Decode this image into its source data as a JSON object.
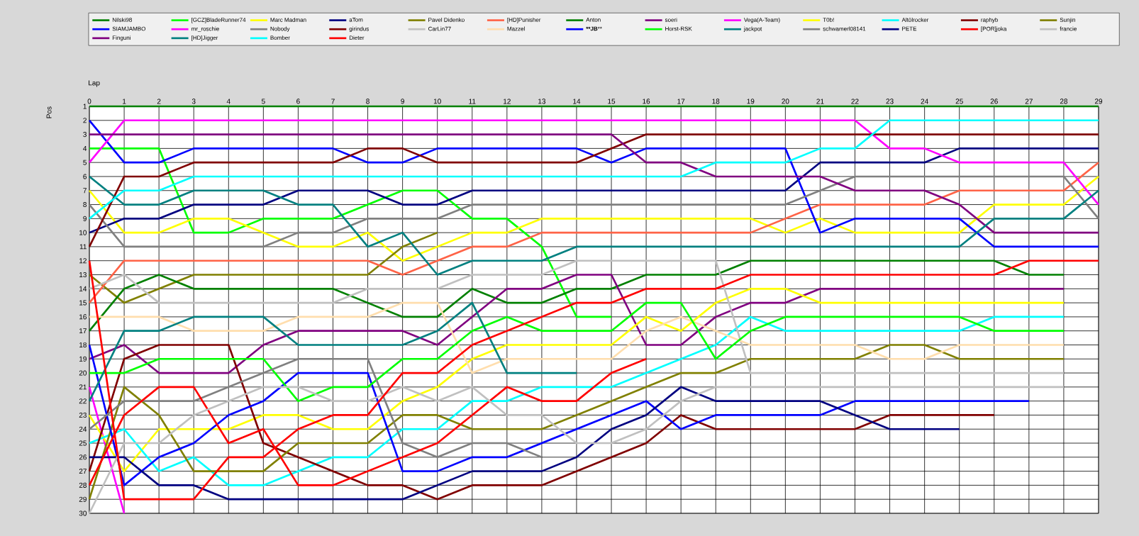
{
  "chart_data": {
    "type": "line",
    "xlabel": "Lap",
    "ylabel": "Pos",
    "x": [
      0,
      1,
      2,
      3,
      4,
      5,
      6,
      7,
      8,
      9,
      10,
      11,
      12,
      13,
      14,
      15,
      16,
      17,
      18,
      19,
      20,
      21,
      22,
      23,
      24,
      25,
      26,
      27,
      28,
      29
    ],
    "xlim": [
      0,
      29
    ],
    "xticks": [
      0,
      1,
      2,
      3,
      4,
      5,
      6,
      7,
      8,
      9,
      10,
      11,
      12,
      13,
      14,
      15,
      16,
      17,
      18,
      19,
      20,
      21,
      22,
      23,
      24,
      25,
      26,
      27,
      28,
      29
    ],
    "ylim": [
      30,
      1
    ],
    "yticks": [
      1,
      2,
      3,
      4,
      5,
      6,
      7,
      8,
      9,
      10,
      11,
      12,
      13,
      14,
      15,
      16,
      17,
      18,
      19,
      20,
      21,
      22,
      23,
      24,
      25,
      26,
      27,
      28,
      29,
      30
    ],
    "grid": true,
    "legend": "top",
    "series": [
      {
        "name": "Nilski98",
        "color": "#008000",
        "values": [
          1,
          1,
          1,
          1,
          1,
          1,
          1,
          1,
          1,
          1,
          1,
          1,
          1,
          1,
          1,
          1,
          1,
          1,
          1,
          1,
          1,
          1,
          1,
          1,
          1,
          1,
          1,
          1,
          1,
          1
        ]
      },
      {
        "name": "SIAMJAMBO",
        "color": "#0000ff",
        "values": [
          2,
          5,
          5,
          4,
          4,
          4,
          4,
          4,
          5,
          5,
          4,
          4,
          4,
          4,
          4,
          5,
          4,
          4,
          4,
          4,
          4,
          10,
          9,
          9,
          9,
          9,
          11,
          11,
          11,
          11
        ]
      },
      {
        "name": "Finguni",
        "color": "#800080",
        "values": [
          3,
          3,
          3,
          3,
          3,
          3,
          3,
          3,
          3,
          3,
          3,
          3,
          3,
          3,
          3,
          3,
          5,
          5,
          6,
          6,
          6,
          6,
          7,
          7,
          7,
          8,
          10,
          10,
          10,
          10
        ]
      },
      {
        "name": "[GCZ]BladeRunner74",
        "color": "#00ff00",
        "values": [
          4,
          4,
          4,
          10,
          10,
          9,
          9,
          9,
          8,
          7,
          7,
          9,
          9,
          11,
          16,
          16,
          null,
          null,
          null,
          null,
          null,
          null,
          null,
          null,
          null,
          null,
          null,
          null,
          null,
          null
        ]
      },
      {
        "name": "mr_roschie",
        "color": "#ff00ff",
        "values": [
          5,
          2,
          2,
          2,
          2,
          2,
          2,
          2,
          2,
          2,
          2,
          2,
          2,
          2,
          2,
          2,
          2,
          2,
          2,
          2,
          2,
          2,
          2,
          4,
          4,
          5,
          5,
          5,
          5,
          8
        ]
      },
      {
        "name": "[HD]Jigger",
        "color": "#008080",
        "values": [
          6,
          8,
          8,
          7,
          7,
          7,
          8,
          8,
          11,
          10,
          13,
          12,
          12,
          12,
          11,
          11,
          11,
          11,
          11,
          11,
          11,
          11,
          11,
          11,
          11,
          11,
          9,
          9,
          9,
          7
        ]
      },
      {
        "name": "Marc Madman",
        "color": "#ffff00",
        "values": [
          7,
          10,
          10,
          9,
          9,
          10,
          11,
          11,
          10,
          12,
          11,
          10,
          10,
          9,
          9,
          9,
          9,
          9,
          9,
          9,
          10,
          9,
          10,
          10,
          10,
          10,
          8,
          8,
          8,
          6
        ]
      },
      {
        "name": "Nobody",
        "color": "#808080",
        "values": [
          8,
          11,
          11,
          11,
          11,
          11,
          10,
          10,
          9,
          9,
          9,
          8,
          8,
          8,
          8,
          8,
          8,
          8,
          8,
          8,
          8,
          7,
          6,
          6,
          6,
          6,
          6,
          6,
          6,
          9
        ]
      },
      {
        "name": "Bomber",
        "color": "#00ffff",
        "values": [
          9,
          7,
          7,
          6,
          6,
          6,
          6,
          6,
          6,
          6,
          6,
          6,
          6,
          6,
          6,
          6,
          6,
          6,
          5,
          5,
          5,
          4,
          4,
          2,
          2,
          2,
          2,
          2,
          2,
          2
        ]
      },
      {
        "name": "aTom",
        "color": "#000080",
        "values": [
          10,
          9,
          9,
          8,
          8,
          8,
          7,
          7,
          7,
          8,
          8,
          7,
          7,
          7,
          7,
          7,
          7,
          7,
          7,
          7,
          7,
          5,
          5,
          5,
          5,
          4,
          4,
          4,
          4,
          4
        ]
      },
      {
        "name": "girindus",
        "color": "#800000",
        "values": [
          11,
          6,
          6,
          5,
          5,
          5,
          5,
          5,
          4,
          4,
          5,
          5,
          5,
          5,
          5,
          4,
          3,
          3,
          3,
          3,
          3,
          3,
          3,
          3,
          3,
          3,
          3,
          3,
          3,
          3
        ]
      },
      {
        "name": "Dieter",
        "color": "#ff0000",
        "values": [
          12,
          29,
          29,
          29,
          26,
          26,
          24,
          23,
          23,
          20,
          20,
          18,
          17,
          16,
          15,
          15,
          14,
          14,
          14,
          13,
          13,
          13,
          13,
          13,
          13,
          13,
          13,
          12,
          12,
          12
        ]
      },
      {
        "name": "Pavel Didenko",
        "color": "#808000",
        "values": [
          13,
          15,
          14,
          13,
          13,
          13,
          13,
          13,
          13,
          11,
          10,
          null,
          null,
          null,
          null,
          null,
          null,
          null,
          null,
          null,
          null,
          null,
          null,
          null,
          null,
          null,
          null,
          null,
          null,
          null
        ]
      },
      {
        "name": "CarLin77",
        "color": "#c0c0c0",
        "values": [
          14,
          13,
          15,
          15,
          15,
          15,
          15,
          15,
          14,
          14,
          14,
          13,
          13,
          13,
          12,
          12,
          12,
          12,
          12,
          20,
          20,
          20,
          20,
          20,
          20,
          20,
          20,
          20,
          20,
          null
        ]
      },
      {
        "name": "[HD]Punisher",
        "color": "#ff6347",
        "values": [
          15,
          12,
          12,
          12,
          12,
          12,
          12,
          12,
          12,
          13,
          12,
          11,
          11,
          10,
          10,
          10,
          10,
          10,
          10,
          10,
          9,
          8,
          8,
          8,
          8,
          7,
          7,
          7,
          7,
          5
        ]
      },
      {
        "name": "Mazzel",
        "color": "#ffdead",
        "values": [
          16,
          16,
          16,
          17,
          17,
          17,
          16,
          16,
          16,
          15,
          15,
          20,
          19,
          19,
          19,
          19,
          17,
          16,
          17,
          18,
          18,
          18,
          18,
          19,
          19,
          18,
          18,
          18,
          18,
          null
        ]
      },
      {
        "name": "Anton",
        "color": "#008000",
        "values": [
          17,
          14,
          13,
          14,
          14,
          14,
          14,
          14,
          15,
          16,
          16,
          14,
          15,
          15,
          14,
          14,
          13,
          13,
          13,
          12,
          12,
          12,
          12,
          12,
          12,
          12,
          12,
          13,
          13,
          null
        ]
      },
      {
        "name": "****JB****",
        "color": "#0000ff",
        "values": [
          18,
          28,
          26,
          25,
          23,
          22,
          20,
          20,
          20,
          27,
          27,
          26,
          26,
          25,
          24,
          23,
          22,
          24,
          23,
          23,
          23,
          23,
          22,
          22,
          22,
          22,
          22,
          22,
          null,
          null
        ]
      },
      {
        "name": "soeri",
        "color": "#800080",
        "values": [
          19,
          18,
          20,
          20,
          20,
          18,
          17,
          17,
          17,
          17,
          18,
          16,
          14,
          14,
          13,
          13,
          18,
          18,
          16,
          15,
          15,
          14,
          14,
          14,
          14,
          14,
          14,
          14,
          14,
          null
        ]
      },
      {
        "name": "Horst-RSK",
        "color": "#00ff00",
        "values": [
          20,
          20,
          19,
          19,
          19,
          19,
          22,
          21,
          21,
          19,
          19,
          17,
          16,
          17,
          17,
          17,
          15,
          15,
          19,
          17,
          16,
          16,
          16,
          16,
          16,
          16,
          17,
          17,
          17,
          null
        ]
      },
      {
        "name": "Vega(A-Team)",
        "color": "#ff00ff",
        "values": [
          21,
          30,
          null,
          null,
          null,
          null,
          null,
          null,
          null,
          null,
          null,
          null,
          null,
          null,
          null,
          null,
          null,
          null,
          null,
          null,
          null,
          null,
          null,
          null,
          null,
          null,
          null,
          null,
          null,
          null
        ]
      },
      {
        "name": "jackpot",
        "color": "#008080",
        "values": [
          22,
          17,
          17,
          16,
          16,
          16,
          18,
          18,
          18,
          18,
          17,
          15,
          20,
          20,
          20,
          null,
          null,
          null,
          null,
          null,
          null,
          null,
          null,
          null,
          null,
          null,
          null,
          null,
          null,
          null
        ]
      },
      {
        "name": "T0b!",
        "color": "#ffff00",
        "values": [
          23,
          27,
          24,
          24,
          24,
          23,
          23,
          24,
          24,
          22,
          21,
          19,
          18,
          18,
          18,
          18,
          16,
          17,
          15,
          14,
          14,
          15,
          15,
          15,
          15,
          15,
          15,
          15,
          15,
          null
        ]
      },
      {
        "name": "schwamerl08141",
        "color": "#808080",
        "values": [
          24,
          22,
          22,
          22,
          21,
          20,
          19,
          19,
          19,
          25,
          26,
          25,
          25,
          26,
          null,
          null,
          null,
          null,
          null,
          null,
          null,
          null,
          null,
          null,
          null,
          null,
          null,
          null,
          null,
          null
        ]
      },
      {
        "name": "Altölrocker",
        "color": "#00ffff",
        "values": [
          25,
          24,
          27,
          26,
          28,
          28,
          27,
          26,
          26,
          24,
          24,
          22,
          22,
          21,
          21,
          21,
          20,
          19,
          18,
          16,
          17,
          17,
          17,
          17,
          17,
          17,
          16,
          16,
          16,
          null
        ]
      },
      {
        "name": "PETE",
        "color": "#000080",
        "values": [
          26,
          26,
          28,
          28,
          29,
          29,
          29,
          29,
          29,
          29,
          28,
          27,
          27,
          27,
          26,
          24,
          23,
          21,
          22,
          22,
          22,
          22,
          23,
          24,
          24,
          24,
          null,
          null,
          null,
          null
        ]
      },
      {
        "name": "raphyb",
        "color": "#800000",
        "values": [
          27,
          19,
          18,
          18,
          18,
          25,
          26,
          27,
          28,
          28,
          29,
          28,
          28,
          28,
          27,
          26,
          25,
          23,
          24,
          24,
          24,
          24,
          24,
          23,
          23,
          23,
          23,
          null,
          null,
          null
        ]
      },
      {
        "name": "[POR]joka",
        "color": "#ff0000",
        "values": [
          28,
          23,
          21,
          21,
          25,
          24,
          28,
          28,
          27,
          26,
          25,
          23,
          21,
          22,
          22,
          20,
          19,
          null,
          null,
          null,
          null,
          null,
          null,
          null,
          null,
          null,
          null,
          null,
          null,
          null
        ]
      },
      {
        "name": "Sunjin",
        "color": "#808000",
        "values": [
          29,
          21,
          23,
          27,
          27,
          27,
          25,
          25,
          25,
          23,
          23,
          24,
          24,
          24,
          23,
          22,
          21,
          20,
          20,
          19,
          19,
          19,
          19,
          18,
          18,
          19,
          19,
          19,
          19,
          null
        ]
      },
      {
        "name": "francie",
        "color": "#c0c0c0",
        "values": [
          30,
          25,
          25,
          23,
          22,
          21,
          21,
          22,
          22,
          21,
          22,
          21,
          23,
          23,
          25,
          25,
          24,
          22,
          21,
          21,
          21,
          21,
          21,
          21,
          21,
          21,
          21,
          21,
          21,
          null
        ]
      }
    ]
  }
}
